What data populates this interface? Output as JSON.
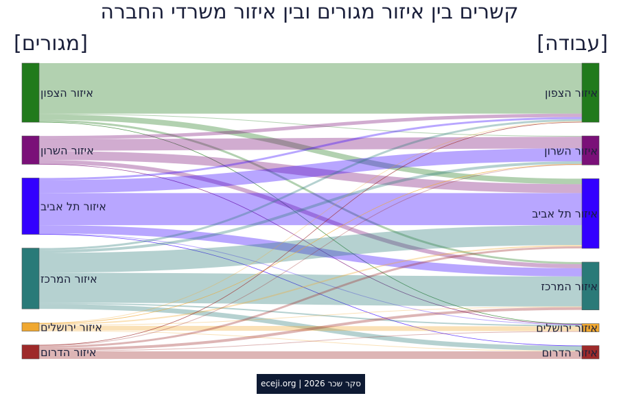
{
  "title": "קשרים בין איזור מגורים ובין איזור משרדי החברה",
  "left_heading": "[מגורים]",
  "right_heading": "[עבודה]",
  "footer": "סקר שכר 2026 | eceji.org",
  "chart_data": {
    "type": "sankey",
    "nodes": [
      {
        "name": "איזור הצפון",
        "color": "#217a1c"
      },
      {
        "name": "איזור השרון",
        "color": "#7a1078"
      },
      {
        "name": "איזור תל אביב",
        "color": "#3300ff"
      },
      {
        "name": "איזור המרכז",
        "color": "#2a7a78"
      },
      {
        "name": "איזור ירושלים",
        "color": "#f0a830"
      },
      {
        "name": "איזור הדרום",
        "color": "#9e2a2a"
      }
    ],
    "links": [
      {
        "source": "איזור הצפון",
        "target": "איזור הצפון",
        "value": 74
      },
      {
        "source": "איזור הצפון",
        "target": "איזור השרון",
        "value": 1
      },
      {
        "source": "איזור הצפון",
        "target": "איזור תל אביב",
        "value": 8
      },
      {
        "source": "איזור הצפון",
        "target": "איזור המרכז",
        "value": 3
      },
      {
        "source": "איזור הצפון",
        "target": "איזור ירושלים",
        "value": 0.5
      },
      {
        "source": "איזור השרון",
        "target": "איזור הצפון",
        "value": 5
      },
      {
        "source": "איזור השרון",
        "target": "איזור השרון",
        "value": 17
      },
      {
        "source": "איזור השרון",
        "target": "איזור תל אביב",
        "value": 13
      },
      {
        "source": "איזור השרון",
        "target": "איזור המרכז",
        "value": 6
      },
      {
        "source": "איזור השרון",
        "target": "איזור ירושלים",
        "value": 0.5
      },
      {
        "source": "איזור תל אביב",
        "target": "איזור הצפון",
        "value": 3
      },
      {
        "source": "איזור תל אביב",
        "target": "איזור השרון",
        "value": 19
      },
      {
        "source": "איזור תל אביב",
        "target": "איזור תל אביב",
        "value": 47
      },
      {
        "source": "איזור תל אביב",
        "target": "איזור המרכז",
        "value": 12
      },
      {
        "source": "איזור תל אביב",
        "target": "איזור ירושלים",
        "value": 1
      },
      {
        "source": "איזור תל אביב",
        "target": "איזור הדרום",
        "value": 0.5
      },
      {
        "source": "איזור המרכז",
        "target": "איזור הצפון",
        "value": 3
      },
      {
        "source": "איזור המרכז",
        "target": "איזור השרון",
        "value": 4
      },
      {
        "source": "איזור המרכז",
        "target": "איזור תל אביב",
        "value": 29
      },
      {
        "source": "איזור המרכז",
        "target": "איזור המרכז",
        "value": 44
      },
      {
        "source": "איזור המרכז",
        "target": "איזור ירושלים",
        "value": 2
      },
      {
        "source": "איזור המרכז",
        "target": "איזור הדרום",
        "value": 7
      },
      {
        "source": "איזור ירושלים",
        "target": "איזור הצפון",
        "value": 1
      },
      {
        "source": "איזור ירושלים",
        "target": "איזור השרון",
        "value": 0.5
      },
      {
        "source": "איזור ירושלים",
        "target": "איזור תל אביב",
        "value": 2
      },
      {
        "source": "איזור ירושלים",
        "target": "איזור המרכז",
        "value": 1
      },
      {
        "source": "איזור ירושלים",
        "target": "איזור ירושלים",
        "value": 7
      },
      {
        "source": "איזור ירושלים",
        "target": "איזור הדרום",
        "value": 1
      },
      {
        "source": "איזור הדרום",
        "target": "איזור הצפון",
        "value": 0.5
      },
      {
        "source": "איזור הדרום",
        "target": "איזור השרון",
        "value": 1
      },
      {
        "source": "איזור הדרום",
        "target": "איזור תל אביב",
        "value": 3
      },
      {
        "source": "איזור הדרום",
        "target": "איזור המרכז",
        "value": 4
      },
      {
        "source": "איזור הדרום",
        "target": "איזור ירושלים",
        "value": 1
      },
      {
        "source": "איזור הדרום",
        "target": "איזור הדרום",
        "value": 11
      }
    ]
  }
}
